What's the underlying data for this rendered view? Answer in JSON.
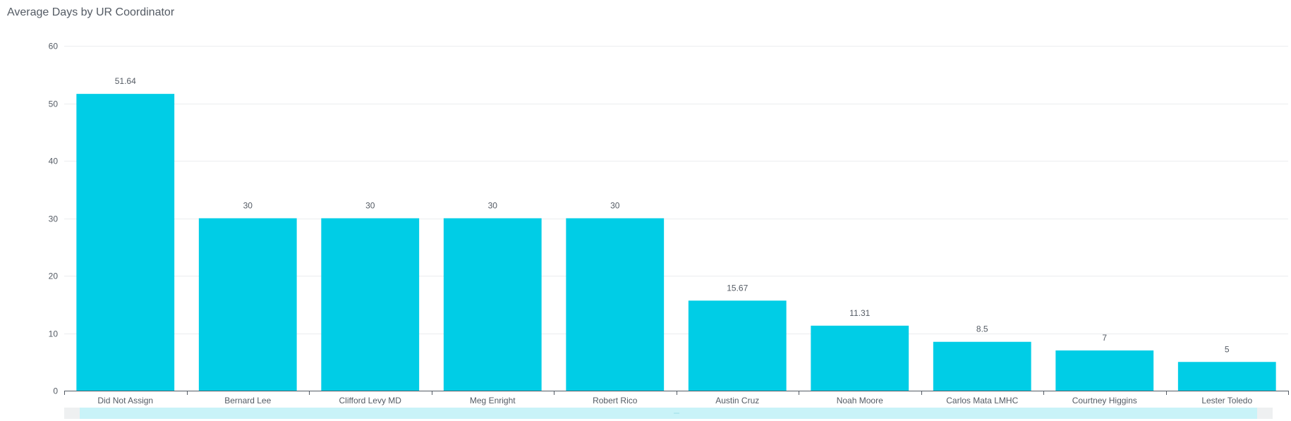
{
  "chart_data": {
    "type": "bar",
    "title": "Average Days by UR Coordinator",
    "xlabel": "",
    "ylabel": "",
    "categories": [
      "Did Not Assign",
      "Bernard Lee",
      "Clifford Levy MD",
      "Meg Enright",
      "Robert Rico",
      "Austin Cruz",
      "Noah Moore",
      "Carlos Mata LMHC",
      "Courtney Higgins",
      "Lester Toledo"
    ],
    "values": [
      51.64,
      30,
      30,
      30,
      30,
      15.67,
      11.31,
      8.5,
      7,
      5
    ],
    "data_labels": [
      "51.64",
      "30",
      "30",
      "30",
      "30",
      "15.67",
      "11.31",
      "8.5",
      "7",
      "5"
    ],
    "ylim": [
      0,
      60
    ],
    "y_ticks": [
      0,
      10,
      20,
      30,
      40,
      50,
      60
    ],
    "grid": true,
    "colors": {
      "bar": "#00cde6",
      "grid": "#ebedef",
      "axis": "#545b64",
      "text": "#545b64",
      "scrollbar": "#c9f3f8"
    }
  }
}
